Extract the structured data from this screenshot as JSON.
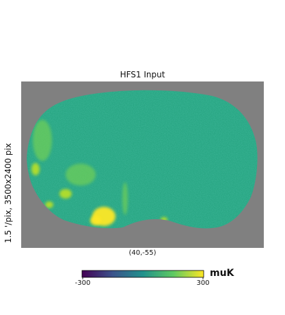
{
  "chart_data": {
    "type": "heatmap",
    "title": "HFS1 Input",
    "ylabel": "1.5 '/pix,   3500x2400 pix",
    "center_label": "(40,-55)",
    "colorbar": {
      "min_label": "-300",
      "max_label": "300",
      "unit": "muK",
      "range": [
        -300,
        300
      ],
      "colormap": "viridis"
    },
    "background_color": "#808080",
    "base_color": "#29a784",
    "colormap_stops": [
      "#440154",
      "#3b528b",
      "#21918c",
      "#5ec962",
      "#fde725"
    ],
    "features": [
      {
        "name": "bright-source-south",
        "level": "saturated"
      },
      {
        "name": "bright-source-west",
        "level": "high"
      },
      {
        "name": "bright-source-southeast",
        "level": "high"
      },
      {
        "name": "galactic-filament-west",
        "level": "elevated"
      }
    ]
  }
}
